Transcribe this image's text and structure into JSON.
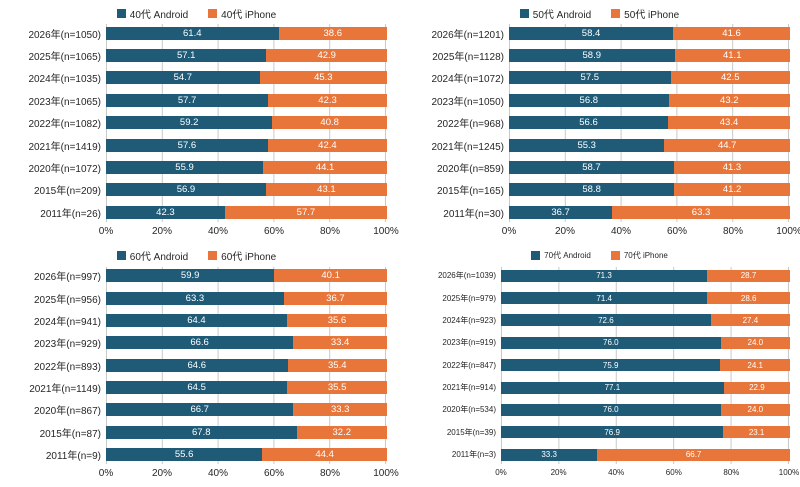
{
  "page": {
    "background": "#ffffff"
  },
  "colors": {
    "android": "#1f5b77",
    "iphone": "#e8763a",
    "grid": "#c9c9c9",
    "value_text": "#ffffff"
  },
  "chart_data": [
    {
      "type": "bar",
      "orientation": "horizontal-stacked",
      "legend_position": "top",
      "grid": true,
      "xlim": [
        0,
        100
      ],
      "x_ticks": [
        "0%",
        "20%",
        "40%",
        "60%",
        "80%",
        "100%"
      ],
      "categories": [
        "2026年(n=1050)",
        "2025年(n=1065)",
        "2024年(n=1035)",
        "2023年(n=1065)",
        "2022年(n=1082)",
        "2021年(n=1419)",
        "2020年(n=1072)",
        "2015年(n=209)",
        "2011年(n=26)"
      ],
      "series": [
        {
          "name": "40代 Android",
          "color": "#1f5b77",
          "values": [
            61.4,
            57.1,
            54.7,
            57.7,
            59.2,
            57.6,
            55.9,
            56.9,
            42.3
          ]
        },
        {
          "name": "40代 iPhone",
          "color": "#e8763a",
          "values": [
            38.6,
            42.9,
            45.3,
            42.3,
            40.8,
            42.4,
            44.1,
            43.1,
            57.7
          ]
        }
      ]
    },
    {
      "type": "bar",
      "orientation": "horizontal-stacked",
      "legend_position": "top",
      "grid": true,
      "xlim": [
        0,
        100
      ],
      "x_ticks": [
        "0%",
        "20%",
        "40%",
        "60%",
        "80%",
        "100%"
      ],
      "categories": [
        "2026年(n=1201)",
        "2025年(n=1128)",
        "2024年(n=1072)",
        "2023年(n=1050)",
        "2022年(n=968)",
        "2021年(n=1245)",
        "2020年(n=859)",
        "2015年(n=165)",
        "2011年(n=30)"
      ],
      "series": [
        {
          "name": "50代 Android",
          "color": "#1f5b77",
          "values": [
            58.4,
            58.9,
            57.5,
            56.8,
            56.6,
            55.3,
            58.7,
            58.8,
            36.7
          ]
        },
        {
          "name": "50代 iPhone",
          "color": "#e8763a",
          "values": [
            41.6,
            41.1,
            42.5,
            43.2,
            43.4,
            44.7,
            41.3,
            41.2,
            63.3
          ]
        }
      ]
    },
    {
      "type": "bar",
      "orientation": "horizontal-stacked",
      "legend_position": "top",
      "grid": true,
      "xlim": [
        0,
        100
      ],
      "x_ticks": [
        "0%",
        "20%",
        "40%",
        "60%",
        "80%",
        "100%"
      ],
      "categories": [
        "2026年(n=997)",
        "2025年(n=956)",
        "2024年(n=941)",
        "2023年(n=929)",
        "2022年(n=893)",
        "2021年(n=1149)",
        "2020年(n=867)",
        "2015年(n=87)",
        "2011年(n=9)"
      ],
      "series": [
        {
          "name": "60代 Android",
          "color": "#1f5b77",
          "values": [
            59.9,
            63.3,
            64.4,
            66.6,
            64.6,
            64.5,
            66.7,
            67.8,
            55.6
          ]
        },
        {
          "name": "60代 iPhone",
          "color": "#e8763a",
          "values": [
            40.1,
            36.7,
            35.6,
            33.4,
            35.4,
            35.5,
            33.3,
            32.2,
            44.4
          ]
        }
      ]
    },
    {
      "type": "bar",
      "orientation": "horizontal-stacked",
      "legend_position": "top",
      "grid": true,
      "xlim": [
        0,
        100
      ],
      "x_ticks": [
        "0%",
        "20%",
        "40%",
        "60%",
        "80%",
        "100%"
      ],
      "categories": [
        "2026年(n=1039)",
        "2025年(n=979)",
        "2024年(n=923)",
        "2023年(n=919)",
        "2022年(n=847)",
        "2021年(n=914)",
        "2020年(n=534)",
        "2015年(n=39)",
        "2011年(n=3)"
      ],
      "series": [
        {
          "name": "70代 Android",
          "color": "#1f5b77",
          "values": [
            71.3,
            71.4,
            72.6,
            76.0,
            75.9,
            77.1,
            76.0,
            76.9,
            33.3
          ]
        },
        {
          "name": "70代 iPhone",
          "color": "#e8763a",
          "values": [
            28.7,
            28.6,
            27.4,
            24.0,
            24.1,
            22.9,
            24.0,
            23.1,
            66.7
          ]
        }
      ]
    }
  ]
}
